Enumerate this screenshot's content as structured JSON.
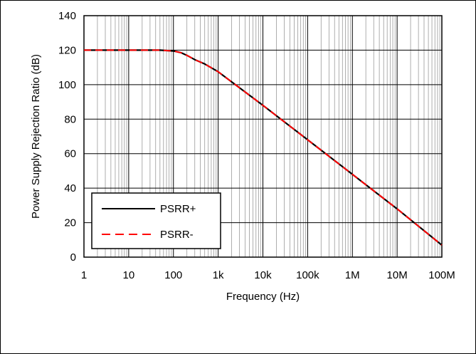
{
  "chart_data": {
    "type": "line",
    "xscale": "log",
    "xlabel": "Frequency (Hz)",
    "ylabel": "Power Supply Rejection Ratio (dB)",
    "xlim": [
      1,
      100000000
    ],
    "ylim": [
      0,
      140
    ],
    "grid": true,
    "x_ticks": [
      1,
      10,
      100,
      1000,
      10000,
      100000,
      1000000,
      10000000,
      100000000
    ],
    "x_tick_labels": [
      "1",
      "10",
      "100",
      "1k",
      "10k",
      "100k",
      "1M",
      "10M",
      "100M"
    ],
    "y_ticks": [
      0,
      20,
      40,
      60,
      80,
      100,
      120,
      140
    ],
    "y_tick_labels": [
      "0",
      "20",
      "40",
      "60",
      "80",
      "100",
      "120",
      "140"
    ],
    "legend_position": "bottom-left",
    "series": [
      {
        "name": "PSRR+",
        "color": "#000000",
        "style": "solid",
        "x": [
          1,
          10,
          50,
          100,
          150,
          200,
          300,
          500,
          1000,
          10000,
          100000,
          1000000,
          10000000,
          100000000
        ],
        "y": [
          120,
          120,
          120,
          119.5,
          118.5,
          117,
          114.5,
          112,
          107.5,
          88,
          68,
          48,
          28,
          7
        ]
      },
      {
        "name": "PSRR-",
        "color": "#ff0000",
        "style": "dashed",
        "x": [
          1,
          10,
          50,
          100,
          150,
          200,
          300,
          500,
          1000,
          10000,
          100000,
          1000000,
          10000000,
          100000000
        ],
        "y": [
          120,
          120,
          120,
          119.5,
          118.5,
          117,
          114.5,
          112,
          107.5,
          88,
          68,
          48,
          28,
          7
        ]
      }
    ]
  }
}
